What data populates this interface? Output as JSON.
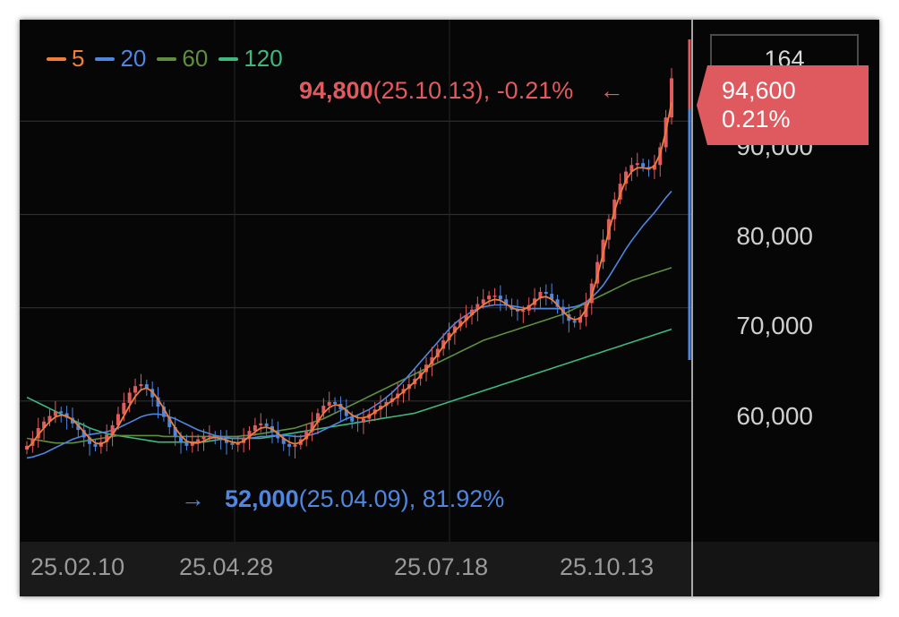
{
  "chart_data": {
    "type": "candlestick",
    "title": "",
    "legend": [
      {
        "label": "5",
        "color": "#f07d3a"
      },
      {
        "label": "20",
        "color": "#4f86e0"
      },
      {
        "label": "60",
        "color": "#5f8f3e"
      },
      {
        "label": "120",
        "color": "#3fb87f"
      }
    ],
    "y_ticks": [
      "90,000",
      "80,000",
      "70,000",
      "60,000"
    ],
    "x_ticks": [
      "25.02.10",
      "25.04.28",
      "25.07.18",
      "25.10.13"
    ],
    "ylim": [
      50000,
      98000
    ],
    "max_marker": {
      "value": "94,800",
      "date": "(25.10.13)",
      "change": ", -0.21%",
      "arrow": "←"
    },
    "min_marker": {
      "value": "52,000",
      "date": "(25.04.09)",
      "change": ", 81.92%",
      "arrow": "→"
    },
    "current_price": {
      "price": "94,600",
      "change": "0.21%"
    },
    "volume_badge": "164",
    "series_close": [
      55200,
      56000,
      57100,
      57800,
      58400,
      58900,
      58700,
      58200,
      57600,
      56900,
      56100,
      55400,
      55100,
      55600,
      56400,
      57400,
      58600,
      59800,
      60900,
      61600,
      61800,
      61300,
      60400,
      59400,
      58300,
      57200,
      56200,
      55600,
      55200,
      55600,
      55900,
      56200,
      56300,
      56100,
      55800,
      55500,
      55300,
      55500,
      56000,
      56800,
      57400,
      57600,
      57300,
      56700,
      56000,
      55400,
      55100,
      55300,
      55900,
      56700,
      57700,
      58700,
      59500,
      59900,
      59700,
      59100,
      58400,
      57800,
      57700,
      58100,
      58600,
      59100,
      59500,
      59900,
      60300,
      60800,
      61300,
      61800,
      62400,
      63100,
      63900,
      64700,
      65600,
      66500,
      67300,
      68000,
      68600,
      69200,
      69800,
      70400,
      70900,
      71300,
      71300,
      70900,
      70200,
      69800,
      69600,
      69700,
      70300,
      71000,
      71700,
      71500,
      70900,
      70100,
      69300,
      68600,
      68400,
      69000,
      70500,
      72600,
      74900,
      77300,
      79500,
      81600,
      83300,
      84600,
      85300,
      85500,
      85100,
      84800,
      85300,
      87200,
      90400,
      94600
    ],
    "ma_5": [
      54900,
      55500,
      56400,
      57100,
      57800,
      58300,
      58500,
      58400,
      58000,
      57400,
      56700,
      56000,
      55500,
      55400,
      55700,
      56400,
      57300,
      58400,
      59500,
      60500,
      61200,
      61400,
      61000,
      60200,
      59200,
      58100,
      57100,
      56300,
      55700,
      55500,
      55500,
      55700,
      56000,
      56100,
      56000,
      55800,
      55600,
      55500,
      55700,
      56200,
      56700,
      57100,
      57200,
      57000,
      56500,
      56000,
      55600,
      55400,
      55600,
      56100,
      56900,
      57800,
      58700,
      59300,
      59600,
      59500,
      59000,
      58500,
      58200,
      58200,
      58400,
      58800,
      59200,
      59600,
      60000,
      60500,
      61000,
      61500,
      62100,
      62700,
      63400,
      64200,
      65000,
      65900,
      66700,
      67500,
      68100,
      68700,
      69300,
      69800,
      70300,
      70700,
      70900,
      70800,
      70400,
      70000,
      69800,
      69800,
      70100,
      70600,
      71100,
      71200,
      70900,
      70300,
      69600,
      69000,
      68700,
      68900,
      69800,
      71300,
      73400,
      75800,
      78200,
      80400,
      82200,
      83700,
      84600,
      85000,
      85000,
      84900,
      85200,
      86500,
      88900,
      92000
    ],
    "ma_20": [
      53900,
      54000,
      54200,
      54400,
      54700,
      55000,
      55300,
      55600,
      55900,
      56100,
      56300,
      56400,
      56500,
      56600,
      56700,
      56900,
      57100,
      57400,
      57700,
      58000,
      58300,
      58500,
      58600,
      58600,
      58500,
      58300,
      58100,
      57800,
      57500,
      57200,
      56900,
      56700,
      56500,
      56300,
      56200,
      56100,
      56000,
      56000,
      56000,
      56000,
      56100,
      56200,
      56200,
      56300,
      56300,
      56300,
      56300,
      56200,
      56200,
      56300,
      56400,
      56600,
      56900,
      57200,
      57500,
      57800,
      58100,
      58300,
      58500,
      58800,
      59100,
      59500,
      59900,
      60400,
      60900,
      61500,
      62100,
      62800,
      63500,
      64200,
      64900,
      65600,
      66300,
      67000,
      67700,
      68300,
      68800,
      69200,
      69600,
      69900,
      70100,
      70200,
      70300,
      70300,
      70300,
      70200,
      70100,
      70000,
      69900,
      69900,
      69900,
      69900,
      69900,
      69900,
      69900,
      70000,
      70100,
      70300,
      70600,
      71100,
      71700,
      72400,
      73300,
      74300,
      75300,
      76300,
      77200,
      78000,
      78800,
      79500,
      80200,
      81000,
      81800,
      82500
    ],
    "ma_60": [
      56000,
      55900,
      55800,
      55700,
      55600,
      55500,
      55500,
      55500,
      55500,
      55600,
      55700,
      55800,
      55900,
      56000,
      56100,
      56200,
      56300,
      56300,
      56300,
      56300,
      56300,
      56300,
      56300,
      56300,
      56200,
      56200,
      56200,
      56200,
      56200,
      56200,
      56200,
      56200,
      56200,
      56200,
      56200,
      56200,
      56200,
      56200,
      56300,
      56300,
      56400,
      56500,
      56600,
      56700,
      56800,
      56900,
      57000,
      57100,
      57300,
      57500,
      57700,
      57900,
      58100,
      58400,
      58700,
      59000,
      59300,
      59600,
      59900,
      60200,
      60500,
      60800,
      61100,
      61400,
      61700,
      62000,
      62300,
      62600,
      62900,
      63200,
      63500,
      63800,
      64100,
      64400,
      64700,
      65000,
      65300,
      65600,
      65900,
      66200,
      66500,
      66700,
      66900,
      67100,
      67300,
      67500,
      67700,
      67900,
      68100,
      68300,
      68500,
      68700,
      68900,
      69100,
      69300,
      69600,
      69900,
      70200,
      70500,
      70800,
      71100,
      71400,
      71700,
      72000,
      72300,
      72600,
      72900,
      73100,
      73300,
      73500,
      73700,
      73900,
      74100,
      74300
    ],
    "ma_120": [
      60400,
      60100,
      59800,
      59500,
      59200,
      58900,
      58600,
      58300,
      58000,
      57700,
      57400,
      57100,
      56900,
      56700,
      56500,
      56400,
      56300,
      56200,
      56100,
      56000,
      55900,
      55800,
      55700,
      55600,
      55600,
      55600,
      55600,
      55600,
      55600,
      55600,
      55600,
      55600,
      55700,
      55800,
      55900,
      56000,
      56000,
      56000,
      56000,
      56000,
      56000,
      56000,
      56100,
      56200,
      56300,
      56400,
      56500,
      56600,
      56700,
      56800,
      56900,
      57000,
      57100,
      57200,
      57300,
      57400,
      57500,
      57600,
      57700,
      57800,
      57900,
      58000,
      58100,
      58200,
      58300,
      58400,
      58500,
      58600,
      58700,
      58900,
      59100,
      59300,
      59500,
      59700,
      59900,
      60100,
      60300,
      60500,
      60700,
      60900,
      61100,
      61300,
      61500,
      61700,
      61900,
      62100,
      62300,
      62500,
      62700,
      62900,
      63100,
      63300,
      63500,
      63700,
      63900,
      64100,
      64300,
      64500,
      64700,
      64900,
      65100,
      65300,
      65500,
      65700,
      65900,
      66100,
      66300,
      66500,
      66700,
      66900,
      67100,
      67300,
      67500,
      67700
    ]
  }
}
